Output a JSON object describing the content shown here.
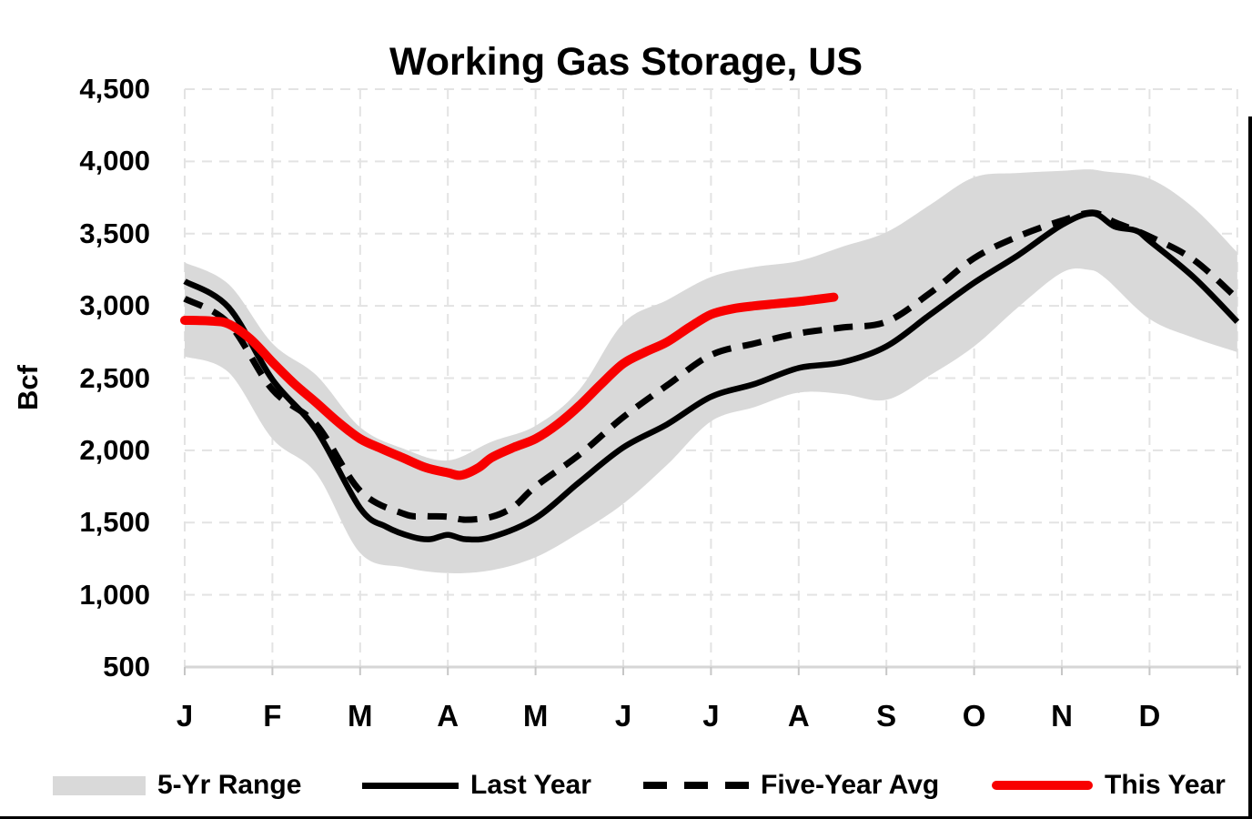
{
  "title": "Working Gas Storage, US",
  "colors": {
    "background": "#ffffff",
    "band": "#d9d9d9",
    "grid": "#e3e3e3",
    "axis": "#d6d6d6",
    "tick_mark": "#c6c6c6",
    "red": "#f80000",
    "black": "#000000",
    "text": "#000000"
  },
  "legend": {
    "items": [
      {
        "label": "5-Yr Range",
        "swatch": "band"
      },
      {
        "label": "Last Year",
        "swatch": "solid-line"
      },
      {
        "label": "Five-Year Avg",
        "swatch": "dashed-line"
      },
      {
        "label": "This Year",
        "swatch": "red-line"
      }
    ]
  },
  "chart_data": {
    "type": "line",
    "title": "Working Gas Storage, US",
    "xlabel": "",
    "ylabel": "Bcf",
    "ylim": [
      500,
      4500
    ],
    "y_tick_step": 500,
    "y_tick_labels": [
      "4,500",
      "4,000",
      "3,500",
      "3,000",
      "2,500",
      "2,000",
      "1,500",
      "1,000",
      "500"
    ],
    "x_tick_labels": [
      "J",
      "F",
      "M",
      "A",
      "M",
      "J",
      "J",
      "A",
      "S",
      "O",
      "N",
      "D"
    ],
    "x_unit": "month index, 0 = Jan 1 through 12 = Dec 31",
    "grid": "light dashed gray: vertical at each month boundary, horizontal every 500 Bcf",
    "legend_position": "bottom",
    "series": [
      {
        "name": "5-Yr Range",
        "type": "band",
        "color": "#d9d9d9",
        "points_m_top_bottom": [
          [
            0,
            3300,
            2650
          ],
          [
            0.5,
            3150,
            2540
          ],
          [
            1,
            2740,
            2080
          ],
          [
            1.5,
            2520,
            1840
          ],
          [
            2,
            2160,
            1290
          ],
          [
            2.5,
            2010,
            1190
          ],
          [
            3,
            1930,
            1150
          ],
          [
            3.5,
            2060,
            1170
          ],
          [
            4,
            2170,
            1260
          ],
          [
            4.5,
            2420,
            1430
          ],
          [
            5,
            2880,
            1630
          ],
          [
            5.5,
            3040,
            1900
          ],
          [
            6,
            3200,
            2200
          ],
          [
            6.5,
            3270,
            2300
          ],
          [
            7,
            3310,
            2400
          ],
          [
            7.5,
            3410,
            2390
          ],
          [
            8,
            3510,
            2350
          ],
          [
            8.5,
            3700,
            2520
          ],
          [
            9,
            3890,
            2720
          ],
          [
            9.5,
            3920,
            2990
          ],
          [
            10,
            3935,
            3230
          ],
          [
            10.3,
            3945,
            3250
          ],
          [
            10.5,
            3930,
            3190
          ],
          [
            11,
            3880,
            2910
          ],
          [
            11.5,
            3680,
            2780
          ],
          [
            12,
            3370,
            2680
          ]
        ]
      },
      {
        "name": "Last Year",
        "type": "line",
        "style": "solid",
        "color": "#000000",
        "width": 6.5,
        "points_m_value": [
          [
            0,
            3170
          ],
          [
            0.5,
            2990
          ],
          [
            1,
            2490
          ],
          [
            1.5,
            2140
          ],
          [
            2,
            1600
          ],
          [
            2.3,
            1470
          ],
          [
            2.6,
            1400
          ],
          [
            2.8,
            1385
          ],
          [
            3,
            1415
          ],
          [
            3.2,
            1385
          ],
          [
            3.5,
            1400
          ],
          [
            4,
            1530
          ],
          [
            4.5,
            1780
          ],
          [
            5,
            2020
          ],
          [
            5.5,
            2180
          ],
          [
            6,
            2370
          ],
          [
            6.5,
            2460
          ],
          [
            7,
            2570
          ],
          [
            7.5,
            2610
          ],
          [
            8,
            2720
          ],
          [
            8.5,
            2940
          ],
          [
            9,
            3160
          ],
          [
            9.5,
            3350
          ],
          [
            10,
            3560
          ],
          [
            10.35,
            3640
          ],
          [
            10.6,
            3550
          ],
          [
            10.85,
            3520
          ],
          [
            11,
            3450
          ],
          [
            11.5,
            3200
          ],
          [
            12,
            2890
          ]
        ]
      },
      {
        "name": "Five-Year Avg",
        "type": "line",
        "style": "dashed",
        "color": "#000000",
        "width": 7,
        "points_m_value": [
          [
            0,
            3050
          ],
          [
            0.5,
            2880
          ],
          [
            1,
            2420
          ],
          [
            1.5,
            2180
          ],
          [
            2,
            1720
          ],
          [
            2.5,
            1560
          ],
          [
            2.75,
            1545
          ],
          [
            3,
            1540
          ],
          [
            3.2,
            1520
          ],
          [
            3.5,
            1540
          ],
          [
            3.75,
            1610
          ],
          [
            4,
            1750
          ],
          [
            4.5,
            1970
          ],
          [
            5,
            2230
          ],
          [
            5.5,
            2450
          ],
          [
            6,
            2660
          ],
          [
            6.5,
            2740
          ],
          [
            7,
            2810
          ],
          [
            7.5,
            2850
          ],
          [
            8,
            2890
          ],
          [
            8.5,
            3090
          ],
          [
            9,
            3330
          ],
          [
            9.5,
            3480
          ],
          [
            10,
            3590
          ],
          [
            10.35,
            3645
          ],
          [
            10.6,
            3580
          ],
          [
            11,
            3480
          ],
          [
            11.5,
            3320
          ],
          [
            12,
            3050
          ]
        ]
      },
      {
        "name": "This Year",
        "type": "line",
        "style": "solid",
        "color": "#f80000",
        "width": 10,
        "points_m_value": [
          [
            0,
            2900
          ],
          [
            0.3,
            2895
          ],
          [
            0.5,
            2875
          ],
          [
            0.75,
            2770
          ],
          [
            1,
            2610
          ],
          [
            1.25,
            2460
          ],
          [
            1.5,
            2330
          ],
          [
            1.75,
            2195
          ],
          [
            2,
            2080
          ],
          [
            2.25,
            2010
          ],
          [
            2.5,
            1945
          ],
          [
            2.75,
            1880
          ],
          [
            3,
            1845
          ],
          [
            3.15,
            1828
          ],
          [
            3.35,
            1880
          ],
          [
            3.5,
            1950
          ],
          [
            3.75,
            2020
          ],
          [
            4,
            2080
          ],
          [
            4.25,
            2180
          ],
          [
            4.5,
            2310
          ],
          [
            4.75,
            2460
          ],
          [
            5,
            2600
          ],
          [
            5.25,
            2680
          ],
          [
            5.5,
            2750
          ],
          [
            5.75,
            2850
          ],
          [
            6,
            2940
          ],
          [
            6.25,
            2980
          ],
          [
            6.5,
            3000
          ],
          [
            6.75,
            3015
          ],
          [
            7,
            3030
          ],
          [
            7.2,
            3045
          ],
          [
            7.4,
            3060
          ]
        ]
      }
    ]
  }
}
